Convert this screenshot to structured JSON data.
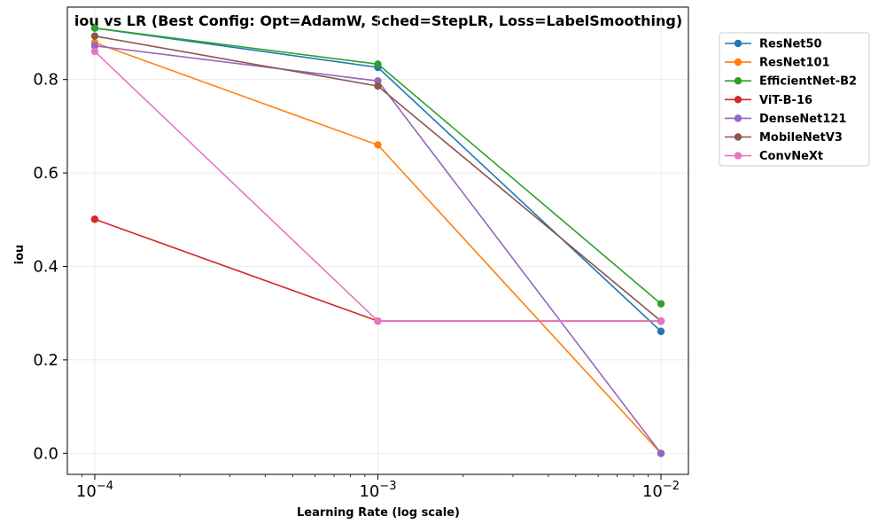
{
  "chart_data": {
    "type": "line",
    "title": "iou vs LR (Best Config: Opt=AdamW, Sched=StepLR, Loss=LabelSmoothing)",
    "xlabel": "Learning Rate (log scale)",
    "ylabel": "iou",
    "x_scale": "log",
    "x": [
      0.0001,
      0.001,
      0.01
    ],
    "x_tick_labels": [
      {
        "base": "10",
        "exp": "−4"
      },
      {
        "base": "10",
        "exp": "−3"
      },
      {
        "base": "10",
        "exp": "−2"
      }
    ],
    "xlim": [
      8e-05,
      0.0125
    ],
    "ylim": [
      -0.045,
      0.955
    ],
    "y_ticks": [
      0.0,
      0.2,
      0.4,
      0.6,
      0.8
    ],
    "y_tick_labels": [
      "0.0",
      "0.2",
      "0.4",
      "0.6",
      "0.8"
    ],
    "grid": true,
    "legend_position": "outside-right",
    "series": [
      {
        "name": "ResNet50",
        "color": "#1f77b4",
        "values": [
          0.91,
          0.826,
          0.261
        ]
      },
      {
        "name": "ResNet101",
        "color": "#ff7f0e",
        "values": [
          0.879,
          0.66,
          0.0
        ]
      },
      {
        "name": "EfficientNet-B2",
        "color": "#2ca02c",
        "values": [
          0.91,
          0.833,
          0.32
        ]
      },
      {
        "name": "ViT-B-16",
        "color": "#d62728",
        "values": [
          0.501,
          0.283,
          0.283
        ]
      },
      {
        "name": "DenseNet121",
        "color": "#9467bd",
        "values": [
          0.872,
          0.797,
          0.0
        ]
      },
      {
        "name": "MobileNetV3",
        "color": "#8c564b",
        "values": [
          0.893,
          0.786,
          0.283
        ]
      },
      {
        "name": "ConvNeXt",
        "color": "#e377c2",
        "values": [
          0.86,
          0.283,
          0.283
        ]
      }
    ]
  }
}
